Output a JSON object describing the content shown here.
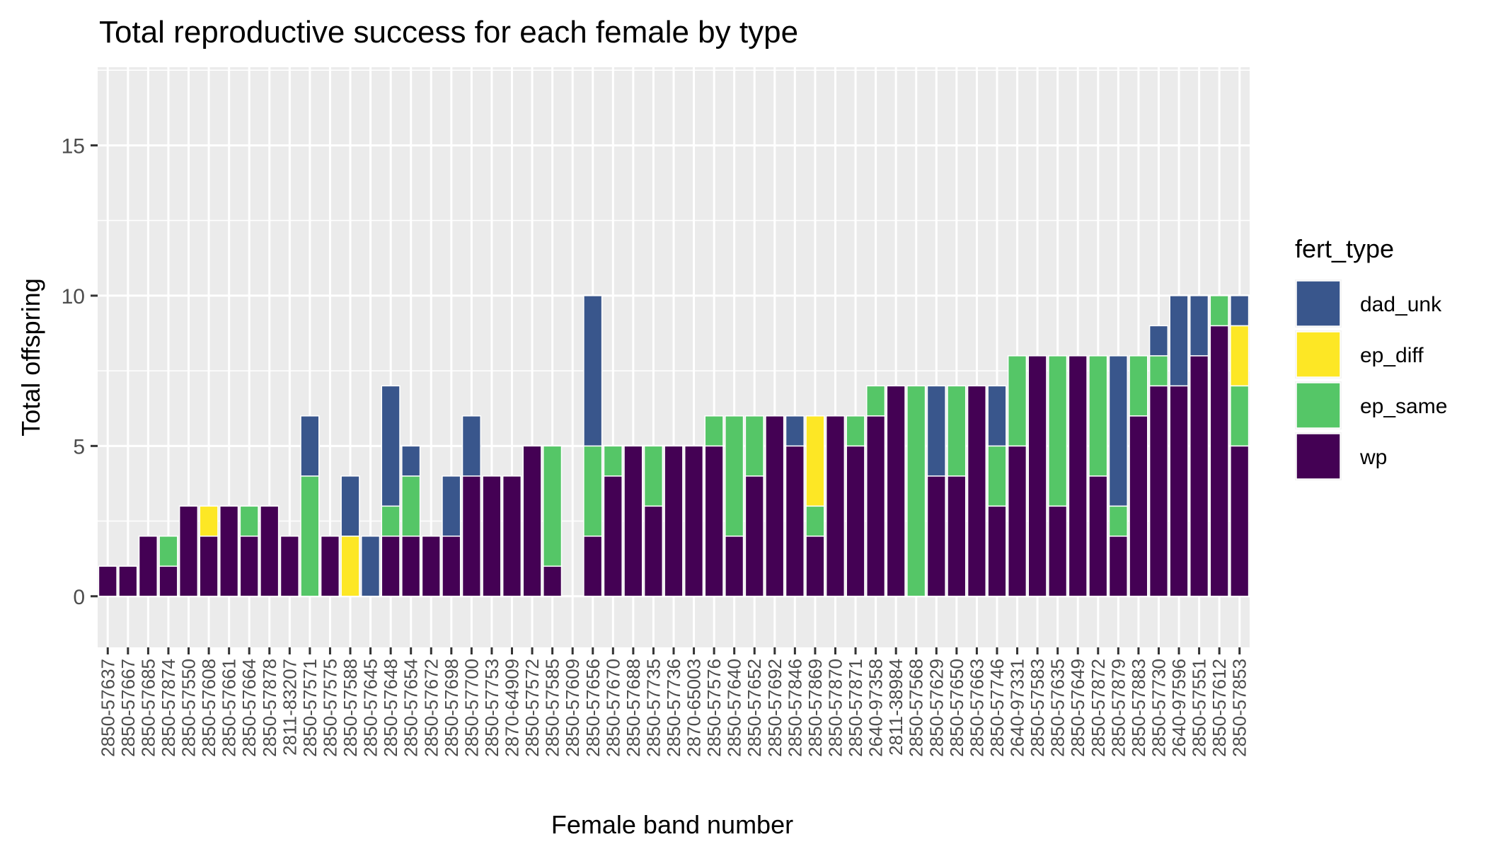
{
  "chart_data": {
    "type": "bar",
    "stacked": true,
    "title": "Total reproductive success for each female by type",
    "xlabel": "Female band number",
    "ylabel": "Total offspring",
    "ylim": [
      -1.7,
      17.6
    ],
    "yticks": [
      0,
      5,
      10,
      15
    ],
    "grid": true,
    "legend": {
      "title": "fert_type",
      "placement": "right"
    },
    "categories": [
      "2850-57637",
      "2850-57667",
      "2850-57685",
      "2850-57874",
      "2850-57550",
      "2850-57608",
      "2850-57661",
      "2850-57664",
      "2850-57878",
      "2811-83207",
      "2850-57571",
      "2850-57575",
      "2850-57588",
      "2850-57645",
      "2850-57648",
      "2850-57654",
      "2850-57672",
      "2850-57698",
      "2850-57700",
      "2850-57753",
      "2870-64909",
      "2850-57572",
      "2850-57585",
      "2850-57609",
      "2850-57656",
      "2850-57670",
      "2850-57688",
      "2850-57735",
      "2850-57736",
      "2870-65003",
      "2850-57576",
      "2850-57640",
      "2850-57652",
      "2850-57692",
      "2850-57846",
      "2850-57869",
      "2850-57870",
      "2850-57871",
      "2640-97358",
      "2811-38984",
      "2850-57568",
      "2850-57629",
      "2850-57650",
      "2850-57663",
      "2850-57746",
      "2640-97331",
      "2850-57583",
      "2850-57635",
      "2850-57649",
      "2850-57872",
      "2850-57879",
      "2850-57883",
      "2850-57730",
      "2640-97596",
      "2850-57551",
      "2850-57612",
      "2850-57853"
    ],
    "series": [
      {
        "name": "wp",
        "color": "#440154",
        "values": [
          1,
          1,
          2,
          1,
          3,
          2,
          3,
          2,
          3,
          2,
          0,
          2,
          0,
          0,
          2,
          2,
          2,
          2,
          4,
          4,
          4,
          5,
          1,
          0,
          2,
          4,
          5,
          3,
          5,
          5,
          5,
          2,
          4,
          6,
          5,
          2,
          6,
          5,
          6,
          7,
          0,
          4,
          4,
          7,
          3,
          5,
          8,
          3,
          8,
          4,
          2,
          6,
          7,
          7,
          8,
          9,
          5
        ]
      },
      {
        "name": "ep_same",
        "color": "#55C667",
        "values": [
          0,
          0,
          0,
          1,
          0,
          0,
          0,
          1,
          0,
          0,
          4,
          0,
          0,
          0,
          1,
          2,
          0,
          0,
          0,
          0,
          0,
          0,
          4,
          0,
          3,
          1,
          0,
          2,
          0,
          0,
          1,
          4,
          2,
          0,
          0,
          1,
          0,
          1,
          1,
          0,
          7,
          0,
          3,
          0,
          2,
          3,
          0,
          5,
          0,
          4,
          1,
          2,
          1,
          0,
          0,
          1,
          2
        ]
      },
      {
        "name": "ep_diff",
        "color": "#FDE725",
        "values": [
          0,
          0,
          0,
          0,
          0,
          1,
          0,
          0,
          0,
          0,
          0,
          0,
          2,
          0,
          0,
          0,
          0,
          0,
          0,
          0,
          0,
          0,
          0,
          0,
          0,
          0,
          0,
          0,
          0,
          0,
          0,
          0,
          0,
          0,
          0,
          3,
          0,
          0,
          0,
          0,
          0,
          0,
          0,
          0,
          0,
          0,
          0,
          0,
          0,
          0,
          0,
          0,
          0,
          0,
          0,
          0,
          2
        ]
      },
      {
        "name": "dad_unk",
        "color": "#39568C",
        "values": [
          0,
          0,
          0,
          0,
          0,
          0,
          0,
          0,
          0,
          0,
          2,
          0,
          2,
          2,
          4,
          1,
          0,
          2,
          2,
          0,
          0,
          0,
          0,
          0,
          5,
          0,
          0,
          0,
          0,
          0,
          0,
          0,
          0,
          0,
          1,
          0,
          0,
          0,
          0,
          0,
          0,
          3,
          0,
          0,
          2,
          0,
          0,
          0,
          0,
          0,
          5,
          0,
          1,
          3,
          2,
          0,
          1
        ]
      }
    ],
    "legend_order": [
      "dad_unk",
      "ep_diff",
      "ep_same",
      "wp"
    ]
  }
}
